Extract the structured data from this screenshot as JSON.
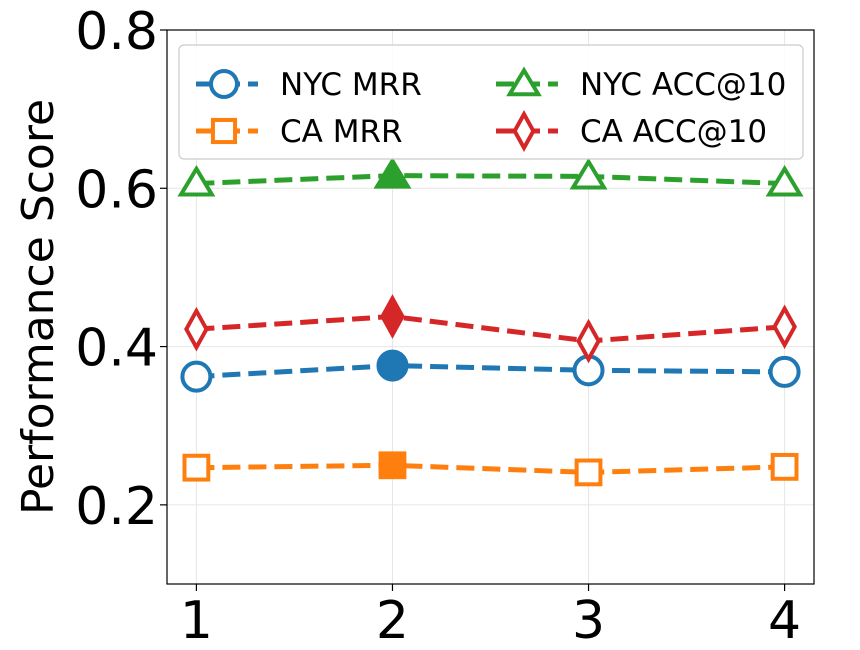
{
  "chart_data": {
    "type": "line",
    "title": "",
    "xlabel": "",
    "ylabel": "Performance Score",
    "x": [
      1,
      2,
      3,
      4
    ],
    "x_tick_labels": [
      "1",
      "2",
      "3",
      "4"
    ],
    "xlim": [
      0.85,
      4.15
    ],
    "ylim": [
      0.1,
      0.8
    ],
    "y_ticks": [
      0.2,
      0.4,
      0.6,
      0.8
    ],
    "y_tick_labels": [
      "0.2",
      "0.4",
      "0.6",
      "0.8"
    ],
    "grid": true,
    "legend_position": "top",
    "highlighted_x": 2,
    "series": [
      {
        "name": "NYC MRR",
        "values": [
          0.362,
          0.376,
          0.37,
          0.368
        ],
        "color": "#1f77b4",
        "marker": "circle"
      },
      {
        "name": "CA MRR",
        "values": [
          0.247,
          0.25,
          0.241,
          0.248
        ],
        "color": "#ff7f0e",
        "marker": "square"
      },
      {
        "name": "NYC ACC@10",
        "values": [
          0.606,
          0.616,
          0.615,
          0.606
        ],
        "color": "#2ca02c",
        "marker": "triangle"
      },
      {
        "name": "CA ACC@10",
        "values": [
          0.422,
          0.438,
          0.407,
          0.425
        ],
        "color": "#d62728",
        "marker": "diamond"
      }
    ]
  }
}
